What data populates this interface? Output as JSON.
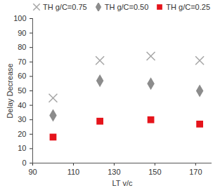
{
  "chart_data": {
    "type": "scatter",
    "x_label": "LT v/c",
    "y_label": "Delay Decrease",
    "x": [
      100,
      123,
      148,
      172
    ],
    "series": [
      {
        "name": "TH g/C=0.75",
        "color": "#a6a6a6",
        "marker": "x",
        "values": [
          45,
          71,
          74,
          71
        ]
      },
      {
        "name": "TH g/C=0.50",
        "color": "#8c8c8c",
        "marker": "diamond",
        "values": [
          33,
          57,
          55,
          50
        ]
      },
      {
        "name": "TH g/C=0.25",
        "color": "#e5141b",
        "marker": "square",
        "values": [
          18,
          29,
          30,
          27
        ]
      }
    ],
    "xlim": [
      90,
      178
    ],
    "xticks": [
      90,
      110,
      130,
      150,
      170
    ],
    "ylim": [
      0,
      100
    ],
    "yticks": [
      0,
      10,
      20,
      30,
      40,
      50,
      60,
      70,
      80,
      90,
      100
    ],
    "grid": false,
    "legend": "top"
  }
}
